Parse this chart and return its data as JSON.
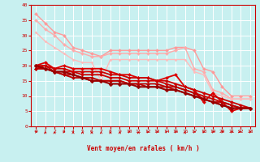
{
  "title": "",
  "xlabel": "Vent moyen/en rafales ( km/h )",
  "bg_color": "#c8f0f0",
  "grid_color": "#ffffff",
  "xlim": [
    -0.5,
    23.5
  ],
  "ylim": [
    0,
    40
  ],
  "xticks": [
    0,
    1,
    2,
    3,
    4,
    5,
    6,
    7,
    8,
    9,
    10,
    11,
    12,
    13,
    14,
    15,
    16,
    17,
    18,
    19,
    20,
    21,
    22,
    23
  ],
  "yticks": [
    0,
    5,
    10,
    15,
    20,
    25,
    30,
    35,
    40
  ],
  "x": [
    0,
    1,
    2,
    3,
    4,
    5,
    6,
    7,
    8,
    9,
    10,
    11,
    12,
    13,
    14,
    15,
    16,
    17,
    18,
    19,
    20,
    21,
    22,
    23
  ],
  "lines": [
    {
      "y": [
        37,
        34,
        31,
        30,
        26,
        25,
        24,
        23,
        25,
        25,
        25,
        25,
        25,
        25,
        25,
        26,
        26,
        25,
        19,
        18,
        13,
        10,
        10,
        10
      ],
      "color": "#ff9999",
      "lw": 1.0,
      "marker": "D",
      "ms": 2.0
    },
    {
      "y": [
        35,
        32,
        30,
        27,
        25,
        24,
        23,
        23,
        24,
        24,
        24,
        24,
        24,
        24,
        24,
        25,
        26,
        19,
        18,
        12,
        11,
        9,
        9,
        9
      ],
      "color": "#ffaaaa",
      "lw": 1.0,
      "marker": "D",
      "ms": 2.0
    },
    {
      "y": [
        31,
        28,
        26,
        24,
        22,
        21,
        21,
        15,
        22,
        22,
        22,
        22,
        22,
        22,
        22,
        22,
        22,
        18,
        17,
        11,
        10,
        9,
        9,
        9
      ],
      "color": "#ffbbbb",
      "lw": 1.0,
      "marker": "D",
      "ms": 1.5
    },
    {
      "y": [
        20,
        21,
        19,
        20,
        19,
        19,
        19,
        19,
        18,
        17,
        17,
        16,
        16,
        15,
        16,
        17,
        13,
        12,
        8,
        11,
        8,
        5,
        6,
        6
      ],
      "color": "#dd0000",
      "lw": 1.3,
      "marker": "D",
      "ms": 2.0
    },
    {
      "y": [
        20,
        20,
        19,
        19,
        18,
        18,
        18,
        18,
        17,
        17,
        16,
        16,
        16,
        15,
        15,
        14,
        13,
        12,
        11,
        10,
        9,
        8,
        7,
        6
      ],
      "color": "#cc0000",
      "lw": 1.3,
      "marker": "D",
      "ms": 2.0
    },
    {
      "y": [
        19,
        20,
        18,
        18,
        18,
        17,
        17,
        17,
        16,
        16,
        15,
        15,
        15,
        15,
        14,
        13,
        12,
        11,
        10,
        9,
        8,
        7,
        6,
        6
      ],
      "color": "#cc0000",
      "lw": 1.3,
      "marker": "D",
      "ms": 2.0
    },
    {
      "y": [
        19,
        19,
        18,
        17,
        17,
        16,
        16,
        15,
        15,
        15,
        14,
        14,
        14,
        14,
        13,
        13,
        12,
        11,
        9,
        8,
        8,
        7,
        6,
        6
      ],
      "color": "#bb0000",
      "lw": 1.3,
      "marker": "D",
      "ms": 2.0
    },
    {
      "y": [
        19,
        19,
        18,
        17,
        16,
        16,
        15,
        15,
        15,
        15,
        14,
        14,
        13,
        13,
        13,
        12,
        11,
        10,
        9,
        8,
        7,
        6,
        6,
        6
      ],
      "color": "#bb0000",
      "lw": 1.3,
      "marker": "D",
      "ms": 2.0
    },
    {
      "y": [
        20,
        19,
        18,
        18,
        17,
        16,
        15,
        15,
        14,
        14,
        14,
        13,
        13,
        13,
        12,
        12,
        11,
        10,
        9,
        8,
        7,
        6,
        6,
        6
      ],
      "color": "#990000",
      "lw": 1.5,
      "marker": "D",
      "ms": 2.5
    }
  ],
  "arrow_angles": [
    45,
    0,
    0,
    45,
    0,
    0,
    0,
    0,
    0,
    0,
    45,
    0,
    45,
    45,
    45,
    45,
    0,
    45,
    45,
    45,
    45,
    45,
    90,
    45
  ]
}
